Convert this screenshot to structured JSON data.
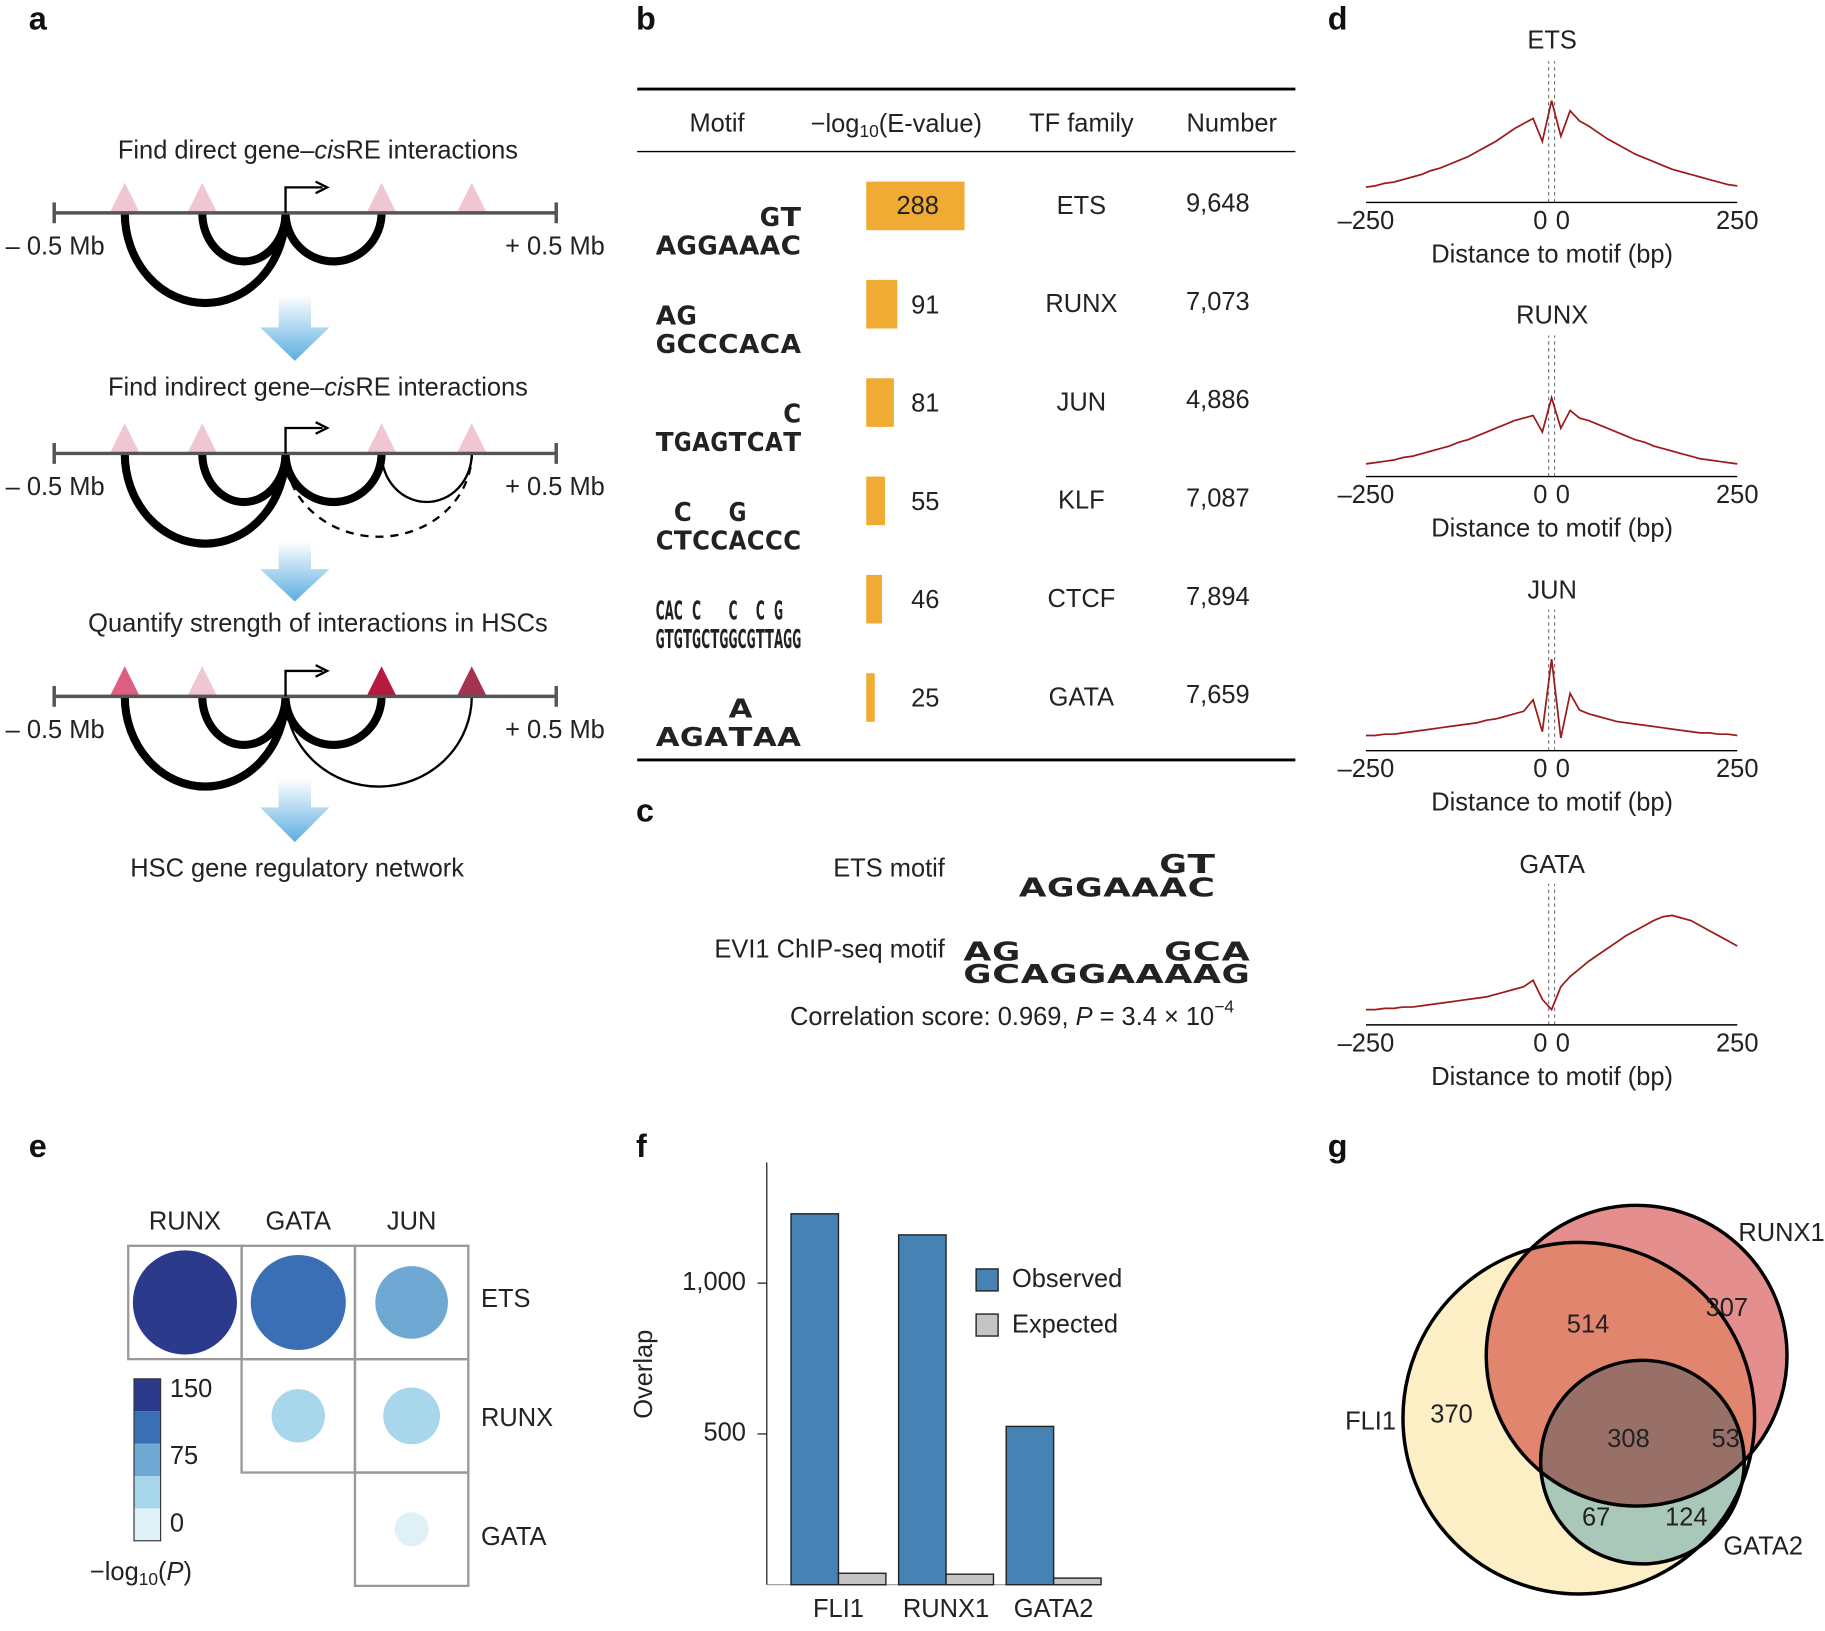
{
  "panel_labels": [
    "a",
    "b",
    "c",
    "d",
    "e",
    "f",
    "g"
  ],
  "letter_colors": {
    "A": "#1b8a2b",
    "C": "#2b2bb0",
    "G": "#f5a623",
    "T": "#d01414"
  },
  "a": {
    "steps": [
      {
        "pre": "Find direct gene–",
        "em": "cis",
        "post": "RE interactions"
      },
      {
        "pre": "Find indirect gene–",
        "em": "cis",
        "post": "RE interactions"
      },
      {
        "pre": "Quantify strength of interactions in HSCs"
      }
    ],
    "left": "– 0.5 Mb",
    "right": "+ 0.5 Mb",
    "result": "HSC gene regulatory network"
  },
  "b": {
    "headers": {
      "motif": "Motif",
      "evalue": {
        "pre": "−log",
        "sub": "10",
        "post": "(E-value)"
      },
      "family": "TF family",
      "number": "Number"
    },
    "bar_color": "#f0ab35",
    "rows": [
      {
        "motif": [
          "A",
          "G",
          "G",
          "A",
          "A",
          "GA",
          "TC"
        ],
        "value": 288,
        "family": "ETS",
        "number": "9,648"
      },
      {
        "motif": [
          "AG",
          "GC",
          "C",
          "C",
          "A",
          "C",
          "A"
        ],
        "value": 91,
        "family": "RUNX",
        "number": "7,073"
      },
      {
        "motif": [
          "T",
          "G",
          "A",
          "G",
          "T",
          "C",
          "A",
          "CT"
        ],
        "value": 81,
        "family": "JUN",
        "number": "4,886"
      },
      {
        "motif": [
          "C",
          "CT",
          "C",
          "C",
          "GA",
          "C",
          "C",
          "C"
        ],
        "value": 55,
        "family": "KLF",
        "number": "7,087"
      },
      {
        "motif": [
          "CG",
          "AT",
          "CG",
          "T",
          "CG",
          "C",
          "T",
          "G",
          "CG",
          "C",
          "G",
          "CT",
          "T",
          "GA",
          "G",
          "G"
        ],
        "value": 46,
        "family": "CTCF",
        "number": "7,894"
      },
      {
        "motif": [
          "A",
          "G",
          "A",
          "AT",
          "A",
          "A"
        ],
        "value": 25,
        "family": "GATA",
        "number": "7,659"
      }
    ]
  },
  "c": {
    "ets_label": "ETS motif",
    "ets_motif": [
      "A",
      "G",
      "G",
      "A",
      "A",
      "GA",
      "TC"
    ],
    "evi1_label": "EVI1 ChIP-seq motif",
    "evi1_motif": [
      "AG",
      "GC",
      "A",
      "G",
      "G",
      "A",
      "A",
      "GA",
      "CA",
      "AG"
    ],
    "correlation": {
      "pre": "Correlation score: 0.969, ",
      "em": "P",
      "mid": " = 3.4 × 10",
      "sup": "−4"
    }
  },
  "d": {
    "type": "line",
    "xlabel": "Distance to motif (bp)",
    "xlim": [
      -250,
      250
    ],
    "ylim": [
      0,
      100
    ],
    "xticks": [
      {
        "value": -250,
        "label": "–250"
      },
      {
        "value": -4,
        "label": "0"
      },
      {
        "value": 4,
        "label": "0"
      },
      250
    ],
    "color": "#9b1b1b",
    "x": [
      -250,
      -237.5,
      -225,
      -212.5,
      -200,
      -187.5,
      -175,
      -162.5,
      -150,
      -137.5,
      -125,
      -112.5,
      -100,
      -87.5,
      -75,
      -62.5,
      -50,
      -37.5,
      -25,
      -12.5,
      0,
      12.5,
      25,
      37.5,
      50,
      62.5,
      75,
      87.5,
      100,
      112.5,
      125,
      137.5,
      150,
      162.5,
      175,
      187.5,
      200,
      212.5,
      225,
      237.5,
      250
    ],
    "charts": [
      {
        "title": "ETS",
        "values": [
          12,
          13,
          15,
          16,
          18,
          20,
          22,
          25,
          27,
          30,
          33,
          36,
          40,
          44,
          48,
          53,
          58,
          62,
          66,
          48,
          80,
          52,
          72,
          64,
          60,
          55,
          50,
          46,
          42,
          38,
          35,
          32,
          29,
          26,
          24,
          22,
          20,
          18,
          16,
          14,
          13
        ]
      },
      {
        "title": "RUNX",
        "values": [
          10,
          11,
          12,
          13,
          15,
          16,
          18,
          20,
          22,
          24,
          27,
          29,
          32,
          35,
          38,
          41,
          44,
          46,
          48,
          35,
          62,
          38,
          52,
          46,
          44,
          41,
          38,
          35,
          32,
          29,
          27,
          24,
          22,
          20,
          18,
          16,
          14,
          13,
          12,
          11,
          10
        ]
      },
      {
        "title": "JUN",
        "values": [
          12,
          12,
          13,
          13,
          14,
          15,
          16,
          17,
          18,
          19,
          20,
          21,
          22,
          24,
          25,
          27,
          29,
          31,
          40,
          15,
          72,
          10,
          45,
          32,
          29,
          27,
          25,
          23,
          22,
          21,
          20,
          19,
          18,
          17,
          16,
          15,
          14,
          14,
          13,
          13,
          12
        ]
      },
      {
        "title": "GATA",
        "values": [
          12,
          12,
          13,
          13,
          14,
          14,
          15,
          16,
          17,
          18,
          19,
          20,
          21,
          22,
          24,
          26,
          28,
          30,
          35,
          20,
          12,
          30,
          38,
          44,
          50,
          55,
          60,
          65,
          70,
          74,
          78,
          82,
          85,
          86,
          84,
          82,
          78,
          74,
          70,
          66,
          62
        ]
      }
    ]
  },
  "e": {
    "type": "bubble",
    "columns": [
      "RUNX",
      "GATA",
      "JUN"
    ],
    "rows": [
      "ETS",
      "RUNX",
      "GATA"
    ],
    "values": [
      [
        150,
        120,
        60
      ],
      [
        null,
        25,
        30
      ],
      [
        null,
        null,
        5
      ]
    ],
    "colorbar": {
      "range": [
        0,
        150
      ],
      "ticks": [
        150,
        75,
        0
      ],
      "colors": [
        "#dff0f6",
        "#a8d6ea",
        "#6fa8d2",
        "#3a6fb6",
        "#2c3a8c"
      ],
      "label": {
        "pre": "−log",
        "sub": "10",
        "open": "(",
        "em": "P",
        "close": ")"
      }
    }
  },
  "f": {
    "type": "bar",
    "ylabel": "Overlap",
    "categories": [
      "FLI1",
      "RUNX1",
      "GATA2"
    ],
    "ylim": [
      0,
      1400
    ],
    "yticks": [
      500,
      {
        "value": 1000,
        "label": "1,000"
      }
    ],
    "series": [
      {
        "name": "Observed",
        "color": "#4682b4",
        "values": [
          1230,
          1160,
          525
        ]
      },
      {
        "name": "Expected",
        "color": "#c4c4c4",
        "values": [
          38,
          35,
          22
        ]
      }
    ]
  },
  "g": {
    "type": "venn",
    "sets": [
      {
        "name": "FLI1",
        "color": "#fcefc6"
      },
      {
        "name": "RUNX1",
        "color": "#e58e8e"
      },
      {
        "name": "GATA2",
        "color": "#acd6ef"
      }
    ],
    "regions": [
      370,
      307,
      124,
      514,
      308,
      53,
      67
    ]
  }
}
